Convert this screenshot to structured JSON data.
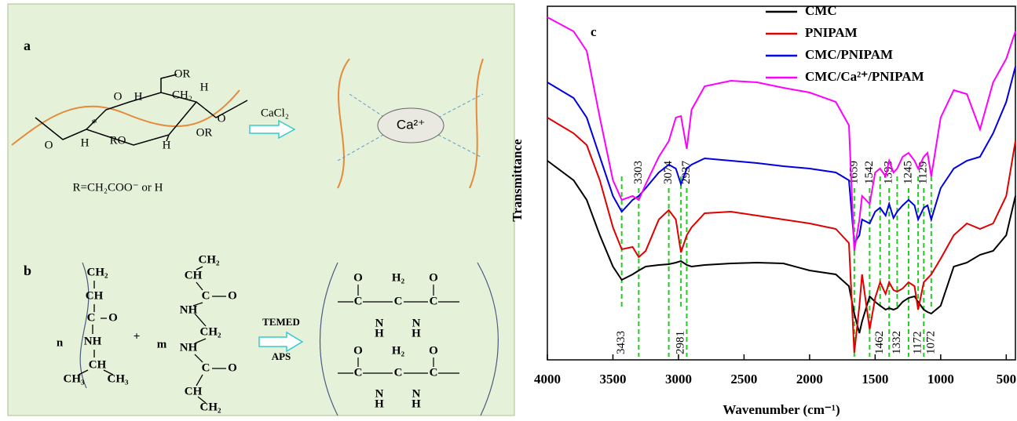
{
  "diagram": {
    "panel_a": {
      "label": "a",
      "atoms": [
        "O",
        "H",
        "OR",
        "CH₂",
        "H",
        "O",
        "OR",
        "H",
        "RO",
        "H",
        "O",
        "*"
      ],
      "note": "R=CH₂COO⁻ or H",
      "reagent": "CaCl₂",
      "ion": "Ca²⁺"
    },
    "panel_b": {
      "label": "b",
      "atoms": [
        "CH₂",
        "CH",
        "C",
        "O",
        "NH",
        "CH",
        "CH₃",
        "CH₃",
        "n",
        "+",
        "m",
        "CH₂",
        "CH",
        "C",
        "O",
        "NH",
        "CH₂",
        "NH",
        "C",
        "O",
        "CH",
        "CH₂",
        "O",
        "H₂",
        "O",
        "C",
        "C",
        "C",
        "N",
        "H",
        "N",
        "H",
        "O",
        "H₂",
        "O",
        "C",
        "C",
        "C",
        "N",
        "H",
        "N",
        "H"
      ],
      "reagents": [
        "TEMED",
        "APS"
      ]
    }
  },
  "chart_data": {
    "type": "line",
    "panel_label": "c",
    "x_label": "Wavenumber (cm⁻¹)",
    "y_label": "Transmittance",
    "x": [
      4000,
      3800,
      3700,
      3600,
      3500,
      3433,
      3350,
      3303,
      3250,
      3150,
      3074,
      3020,
      2981,
      2937,
      2900,
      2800,
      2600,
      2400,
      2200,
      2000,
      1800,
      1700,
      1659,
      1620,
      1600,
      1542,
      1500,
      1462,
      1420,
      1393,
      1360,
      1332,
      1290,
      1245,
      1200,
      1172,
      1129,
      1100,
      1072,
      1000,
      900,
      800,
      700,
      600,
      500,
      430
    ],
    "series": [
      {
        "name": "CMC",
        "color": "#000000",
        "values": [
          254,
          229,
          204,
          159,
          119,
          102,
          109,
          114,
          119,
          121,
          122,
          124,
          126,
          121,
          119,
          121,
          123,
          124,
          123,
          114,
          109,
          94,
          59,
          34,
          49,
          81,
          74,
          69,
          64,
          66,
          64,
          66,
          74,
          79,
          81,
          74,
          64,
          61,
          59,
          69,
          119,
          124,
          134,
          139,
          159,
          209
        ]
      },
      {
        "name": "PNIPAM",
        "color": "#e00000",
        "values": [
          309,
          289,
          274,
          229,
          169,
          141,
          144,
          131,
          139,
          179,
          191,
          179,
          137,
          159,
          169,
          187,
          189,
          184,
          179,
          174,
          167,
          149,
          9,
          69,
          109,
          39,
          79,
          99,
          84,
          99,
          89,
          87,
          91,
          99,
          94,
          64,
          99,
          104,
          109,
          129,
          159,
          174,
          167,
          174,
          209,
          279
        ]
      },
      {
        "name": "CMC/PNIPAM",
        "color": "#0000e0",
        "values": [
          354,
          334,
          309,
          259,
          209,
          189,
          204,
          209,
          219,
          239,
          249,
          244,
          224,
          244,
          249,
          257,
          254,
          251,
          247,
          244,
          239,
          229,
          149,
          159,
          179,
          174,
          189,
          194,
          184,
          199,
          181,
          189,
          197,
          204,
          197,
          179,
          194,
          197,
          179,
          219,
          244,
          254,
          259,
          289,
          329,
          374
        ]
      },
      {
        "name": "CMC/Ca²⁺/PNIPAM",
        "color": "#ff00ff",
        "values": [
          437,
          419,
          394,
          309,
          229,
          204,
          209,
          204,
          224,
          259,
          279,
          309,
          311,
          269,
          319,
          349,
          356,
          354,
          347,
          341,
          329,
          299,
          139,
          179,
          209,
          199,
          239,
          244,
          234,
          254,
          239,
          244,
          259,
          264,
          254,
          244,
          259,
          264,
          234,
          309,
          344,
          339,
          294,
          354,
          384,
          419
        ]
      }
    ],
    "xlim": [
      4000,
      430
    ],
    "ylim": [
      0,
      451
    ],
    "xticks": [
      4000,
      3500,
      3000,
      2500,
      2000,
      1500,
      1000,
      500
    ],
    "annotations_top": [
      3303,
      3074,
      2937,
      1659,
      1542,
      1393,
      1245,
      1129
    ],
    "annotations_bottom": [
      3433,
      2981,
      1462,
      1332,
      1172,
      1072
    ],
    "annotation_color": "#22cc22",
    "legend": "top"
  }
}
